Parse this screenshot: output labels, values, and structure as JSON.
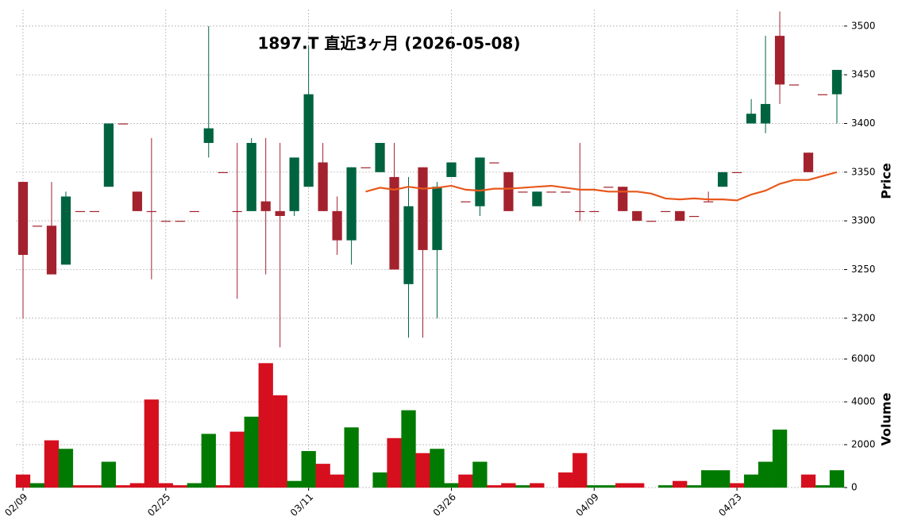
{
  "chart_data": {
    "type": "candlestick",
    "title": "1897.T  直近3ヶ月  (2026-05-08)",
    "ylabel": "Price",
    "y2label": "Volume",
    "categories": [
      "02/09",
      null,
      null,
      null,
      null,
      null,
      null,
      null,
      null,
      null,
      "02/25",
      null,
      null,
      null,
      null,
      null,
      null,
      null,
      null,
      null,
      "03/11",
      null,
      null,
      null,
      null,
      null,
      null,
      null,
      null,
      null,
      "03/26",
      null,
      null,
      null,
      null,
      null,
      null,
      null,
      null,
      null,
      "04/09",
      null,
      null,
      null,
      null,
      null,
      null,
      null,
      null,
      null,
      "04/23",
      null,
      null,
      null,
      null,
      null,
      null,
      null
    ],
    "open": [
      3340,
      3295,
      3295,
      3255,
      3310,
      3310,
      3335,
      3400,
      3330,
      3310,
      3300,
      3300,
      3310,
      3380,
      3350,
      3310,
      3310,
      3320,
      3310,
      3310,
      3335,
      3360,
      3310,
      3280,
      3355,
      3350,
      3345,
      3235,
      3355,
      3270,
      3345,
      3320,
      3315,
      3360,
      3350,
      3330,
      3315,
      3330,
      3330,
      3310,
      3310,
      3335,
      3335,
      3310,
      3300,
      3310,
      3310,
      3305,
      3320,
      3335,
      3350,
      3400,
      3400,
      3490,
      3440,
      3370,
      3430,
      3430
    ],
    "high": [
      3340,
      3295,
      3340,
      3330,
      3310,
      3310,
      3400,
      3400,
      3330,
      3385,
      3300,
      3300,
      3310,
      3500,
      3350,
      3380,
      3385,
      3385,
      3380,
      3365,
      3480,
      3380,
      3325,
      3355,
      3355,
      3380,
      3380,
      3345,
      3355,
      3340,
      3360,
      3320,
      3365,
      3360,
      3350,
      3330,
      3330,
      3330,
      3330,
      3380,
      3310,
      3335,
      3335,
      3310,
      3300,
      3310,
      3310,
      3305,
      3330,
      3350,
      3350,
      3425,
      3490,
      3515,
      3440,
      3370,
      3430,
      3455
    ],
    "low": [
      3200,
      3295,
      3245,
      3255,
      3310,
      3310,
      3335,
      3400,
      3310,
      3240,
      3300,
      3300,
      3310,
      3365,
      3350,
      3220,
      3310,
      3245,
      3170,
      3305,
      3335,
      3310,
      3265,
      3255,
      3355,
      3350,
      3250,
      3180,
      3180,
      3200,
      3345,
      3320,
      3305,
      3360,
      3310,
      3330,
      3315,
      3330,
      3330,
      3300,
      3310,
      3335,
      3310,
      3300,
      3300,
      3310,
      3300,
      3305,
      3320,
      3335,
      3350,
      3400,
      3390,
      3420,
      3440,
      3350,
      3430,
      3400
    ],
    "close": [
      3265,
      3295,
      3245,
      3325,
      3310,
      3310,
      3400,
      3400,
      3310,
      3310,
      3300,
      3300,
      3310,
      3395,
      3350,
      3310,
      3380,
      3310,
      3305,
      3365,
      3430,
      3310,
      3280,
      3355,
      3355,
      3380,
      3250,
      3315,
      3270,
      3335,
      3360,
      3320,
      3365,
      3360,
      3310,
      3330,
      3330,
      3330,
      3330,
      3310,
      3310,
      3335,
      3310,
      3300,
      3300,
      3310,
      3300,
      3305,
      3320,
      3350,
      3350,
      3410,
      3420,
      3440,
      3440,
      3350,
      3430,
      3455
    ],
    "up_color": "#006340",
    "down_color": "#a3222e",
    "ma": {
      "color": "#e8581c",
      "values": [
        null,
        null,
        null,
        null,
        null,
        null,
        null,
        null,
        null,
        null,
        null,
        null,
        null,
        null,
        null,
        null,
        null,
        null,
        null,
        null,
        null,
        null,
        null,
        null,
        3330,
        3334,
        3332,
        3335,
        3333,
        3334,
        3336,
        3332,
        3331,
        3333,
        3333,
        3334,
        3335,
        3336,
        3334,
        3332,
        3332,
        3330,
        3330,
        3330,
        3328,
        3323,
        3322,
        3323,
        3322,
        3322,
        3321,
        3327,
        3331,
        3338,
        3342,
        3342,
        3346,
        3350
      ]
    },
    "volume": {
      "values": [
        600,
        200,
        2200,
        1800,
        100,
        100,
        1200,
        100,
        200,
        4100,
        200,
        100,
        200,
        2500,
        100,
        2600,
        3300,
        5800,
        4300,
        300,
        1700,
        1100,
        600,
        2800,
        0,
        700,
        2300,
        3600,
        1600,
        1800,
        200,
        600,
        1200,
        100,
        200,
        100,
        200,
        0,
        700,
        1600,
        100,
        100,
        200,
        200,
        0,
        100,
        300,
        100,
        800,
        800,
        200,
        600,
        1200,
        2700,
        0,
        600,
        100,
        800
      ],
      "colors": [
        "#d50f1e",
        "#007a00",
        "#d50f1e",
        "#007a00",
        "#d50f1e",
        "#d50f1e",
        "#007a00",
        "#d50f1e",
        "#d50f1e",
        "#d50f1e",
        "#d50f1e",
        "#d50f1e",
        "#007a00",
        "#007a00",
        "#d50f1e",
        "#d50f1e",
        "#007a00",
        "#d50f1e",
        "#d50f1e",
        "#007a00",
        "#007a00",
        "#d50f1e",
        "#d50f1e",
        "#007a00",
        "#007a00",
        "#007a00",
        "#d50f1e",
        "#007a00",
        "#d50f1e",
        "#007a00",
        "#007a00",
        "#d50f1e",
        "#007a00",
        "#d50f1e",
        "#d50f1e",
        "#007a00",
        "#d50f1e",
        "#007a00",
        "#d50f1e",
        "#d50f1e",
        "#007a00",
        "#007a00",
        "#d50f1e",
        "#d50f1e",
        "#007a00",
        "#007a00",
        "#d50f1e",
        "#007a00",
        "#007a00",
        "#007a00",
        "#d50f1e",
        "#007a00",
        "#007a00",
        "#007a00",
        "#007a00",
        "#d50f1e",
        "#007a00",
        "#007a00"
      ]
    },
    "ylim": [
      3168,
      3517
    ],
    "yticks": [
      3200,
      3250,
      3300,
      3350,
      3400,
      3450,
      3500
    ],
    "y2lim": [
      0,
      6300
    ],
    "y2ticks": [
      0,
      2000,
      4000,
      6000
    ],
    "grid": true
  }
}
